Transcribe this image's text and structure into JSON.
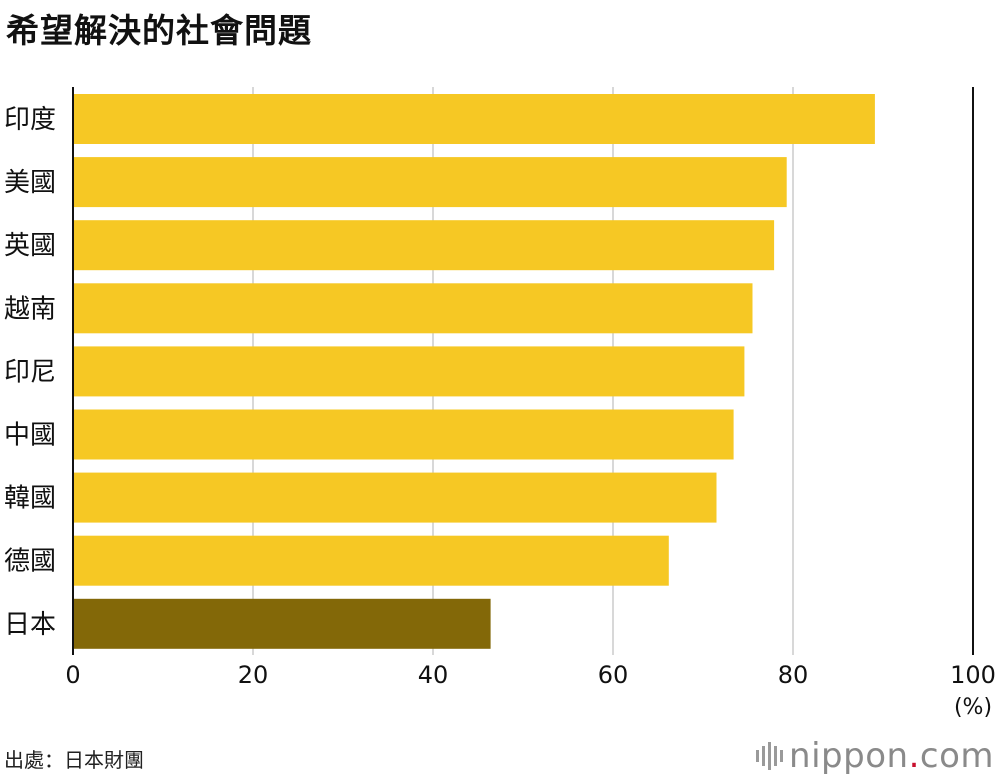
{
  "title": "希望解決的社會問題",
  "source": "出處：日本財團",
  "logo": {
    "name": "nippon",
    "dot": ".",
    "tld": "com"
  },
  "chart_data": {
    "type": "bar",
    "orientation": "horizontal",
    "categories": [
      "印度",
      "美國",
      "英國",
      "越南",
      "印尼",
      "中國",
      "韓國",
      "德國",
      "日本"
    ],
    "values": [
      89.1,
      79.3,
      77.9,
      75.5,
      74.6,
      73.4,
      71.5,
      66.2,
      46.4
    ],
    "xlim": [
      0,
      100
    ],
    "xticks": [
      0,
      20,
      40,
      60,
      80,
      100
    ],
    "unit_label": "(%)",
    "grid": true,
    "colors": {
      "default": "#f6c824",
      "highlight": "#836808",
      "grid": "#cccccc",
      "axis": "#111111"
    },
    "highlight": "日本"
  }
}
